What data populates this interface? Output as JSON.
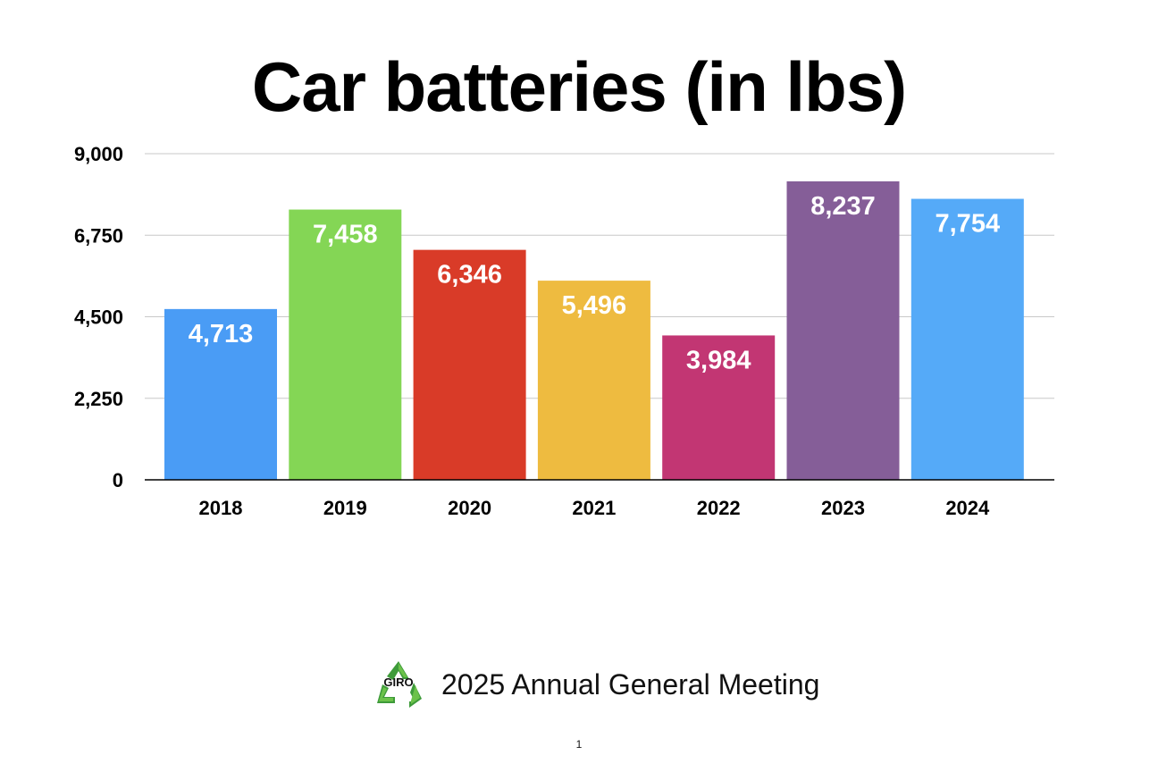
{
  "chart_data": {
    "type": "bar",
    "title": "Car batteries (in lbs)",
    "categories": [
      "2018",
      "2019",
      "2020",
      "2021",
      "2022",
      "2023",
      "2024"
    ],
    "values": [
      4713,
      7458,
      6346,
      5496,
      3984,
      8237,
      7754
    ],
    "value_labels": [
      "4,713",
      "7,458",
      "6,346",
      "5,496",
      "3,984",
      "8,237",
      "7,754"
    ],
    "colors": [
      "#4A9CF5",
      "#84D655",
      "#D93B28",
      "#EEBB40",
      "#C23673",
      "#855E98",
      "#55AAF8"
    ],
    "ylim": [
      0,
      9000
    ],
    "yticks": [
      0,
      2250,
      4500,
      6750,
      9000
    ],
    "ytick_labels": [
      "0",
      "2,250",
      "4,500",
      "6,750",
      "9,000"
    ],
    "xlabel": "",
    "ylabel": "",
    "grid": true,
    "legend": "none"
  },
  "footer": {
    "logo_icon": "recycle-icon",
    "logo_text": "GIRO",
    "meeting_text": "2025 Annual General Meeting",
    "page_number": "1"
  }
}
